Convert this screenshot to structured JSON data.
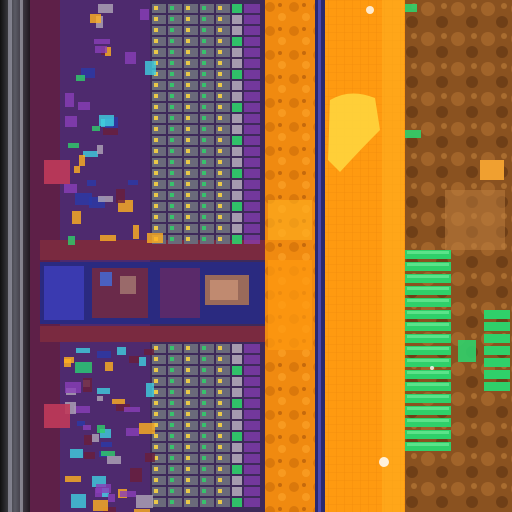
{
  "image": {
    "subject": "die-micrograph",
    "palette": {
      "edge_dark": "#181418",
      "edge_silver": "#8a8a96",
      "logic_purple": "#5a2a78",
      "logic_violet": "#8a3fb8",
      "logic_maroon": "#6a1e3a",
      "cell_gray": "#6a6a7a",
      "cell_light": "#b0a6b8",
      "metal_orange": "#ff9a10",
      "metal_amber": "#e07a08",
      "metal_bright": "#ffb020",
      "metal_yellow": "#ffd840",
      "copper_brown": "#9a5a20",
      "copper_dark": "#6a3810",
      "pad_green": "#2fd06a",
      "pad_green_light": "#7af0a0",
      "blue_bus": "#2a3aa8",
      "accent_cyan": "#40d0e0"
    }
  }
}
